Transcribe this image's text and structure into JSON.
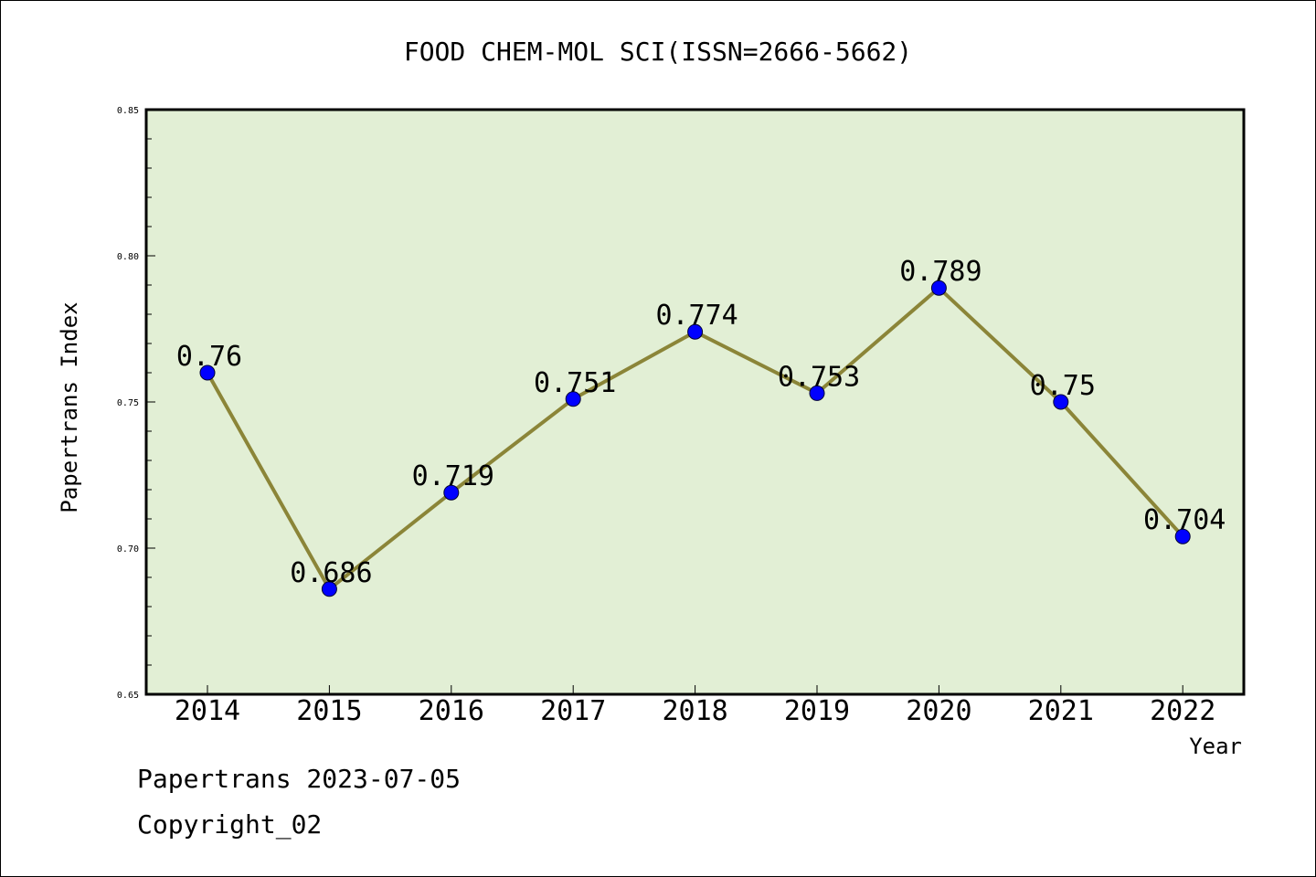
{
  "chart_data": {
    "type": "line",
    "title": "FOOD CHEM-MOL SCI(ISSN=2666-5662)",
    "xlabel": "Year",
    "ylabel": "Papertrans Index",
    "categories": [
      "2014",
      "2015",
      "2016",
      "2017",
      "2018",
      "2019",
      "2020",
      "2021",
      "2022"
    ],
    "values": [
      0.76,
      0.686,
      0.719,
      0.751,
      0.774,
      0.753,
      0.789,
      0.75,
      0.704
    ],
    "value_labels": [
      "0.76",
      "0.686",
      "0.719",
      "0.751",
      "0.774",
      "0.753",
      "0.789",
      "0.75",
      "0.704"
    ],
    "ylim": [
      0.65,
      0.85
    ],
    "yticks": [
      "0.65",
      "0.70",
      "0.75",
      "0.80",
      "0.85"
    ],
    "grid": false,
    "colors": {
      "plot_background": "#e2efd5",
      "line": "#8b8538",
      "marker": "#0000ff"
    }
  },
  "footer": {
    "line1": "Papertrans 2023-07-05",
    "line2": "Copyright_02"
  }
}
